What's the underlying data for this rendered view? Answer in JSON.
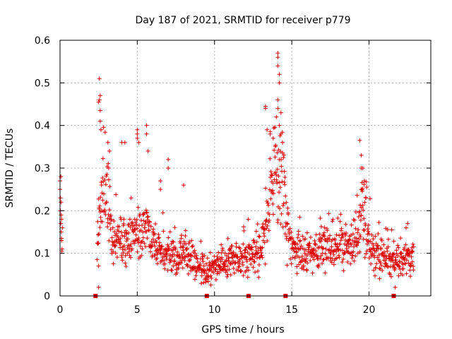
{
  "chart_data": {
    "type": "scatter",
    "title": "Day 187 of 2021, SRMTID for receiver p779",
    "xlabel": "GPS time / hours",
    "ylabel": "SRMTID / TECUs",
    "xlim": [
      0,
      24
    ],
    "ylim": [
      0,
      0.6
    ],
    "xticks": [
      0,
      5,
      10,
      15,
      20
    ],
    "xtick_labels": [
      "0",
      "5",
      "10",
      "15",
      "20"
    ],
    "yticks": [
      0,
      0.1,
      0.2,
      0.3,
      0.4,
      0.5,
      0.6
    ],
    "ytick_labels": [
      "0",
      "0.1",
      "0.2",
      "0.3",
      "0.4",
      "0.5",
      "0.6"
    ],
    "grid": true,
    "marker": "plus",
    "color": "#e00000",
    "gap_markers_x": [
      2.3,
      9.5,
      12.2,
      14.6,
      21.6
    ],
    "series": [
      {
        "name": "SRMTID",
        "generator": "envelope",
        "x_start": 2.4,
        "x_end": 22.9,
        "step": 0.0167,
        "envelope": [
          [
            2.4,
            0.12
          ],
          [
            2.7,
            0.25
          ],
          [
            2.9,
            0.32
          ],
          [
            3.1,
            0.2
          ],
          [
            3.4,
            0.15
          ],
          [
            3.9,
            0.13
          ],
          [
            4.3,
            0.12
          ],
          [
            4.8,
            0.15
          ],
          [
            5.2,
            0.14
          ],
          [
            5.6,
            0.17
          ],
          [
            6.0,
            0.12
          ],
          [
            6.5,
            0.1
          ],
          [
            7.0,
            0.1
          ],
          [
            7.5,
            0.09
          ],
          [
            8.0,
            0.1
          ],
          [
            8.5,
            0.09
          ],
          [
            9.0,
            0.07
          ],
          [
            9.5,
            0.05
          ],
          [
            10.0,
            0.07
          ],
          [
            10.5,
            0.08
          ],
          [
            11.0,
            0.09
          ],
          [
            11.5,
            0.09
          ],
          [
            12.0,
            0.09
          ],
          [
            12.5,
            0.1
          ],
          [
            13.0,
            0.11
          ],
          [
            13.4,
            0.18
          ],
          [
            13.8,
            0.25
          ],
          [
            14.2,
            0.3
          ],
          [
            14.5,
            0.24
          ],
          [
            14.8,
            0.13
          ],
          [
            15.3,
            0.1
          ],
          [
            15.8,
            0.09
          ],
          [
            16.3,
            0.1
          ],
          [
            16.8,
            0.11
          ],
          [
            17.3,
            0.12
          ],
          [
            17.8,
            0.12
          ],
          [
            18.3,
            0.12
          ],
          [
            18.8,
            0.11
          ],
          [
            19.3,
            0.14
          ],
          [
            19.6,
            0.2
          ],
          [
            19.9,
            0.13
          ],
          [
            20.4,
            0.09
          ],
          [
            20.9,
            0.09
          ],
          [
            21.4,
            0.08
          ],
          [
            21.9,
            0.08
          ],
          [
            22.4,
            0.09
          ],
          [
            22.9,
            0.09
          ]
        ],
        "extra_points": [
          [
            0.0,
            0.25
          ],
          [
            0.0,
            0.27
          ],
          [
            0.02,
            0.2
          ],
          [
            0.05,
            0.17
          ],
          [
            0.08,
            0.15
          ],
          [
            0.1,
            0.13
          ],
          [
            0.13,
            0.11
          ],
          [
            0.05,
            0.28
          ],
          [
            0.1,
            0.18
          ],
          [
            0.15,
            0.16
          ],
          [
            0.03,
            0.23
          ],
          [
            0.12,
            0.105
          ],
          [
            0.07,
            0.19
          ],
          [
            0.09,
            0.135
          ],
          [
            0.06,
            0.22
          ],
          [
            2.55,
            0.51
          ],
          [
            2.5,
            0.455
          ],
          [
            2.55,
            0.46
          ],
          [
            2.6,
            0.47
          ],
          [
            2.6,
            0.435
          ],
          [
            2.6,
            0.41
          ],
          [
            2.65,
            0.39
          ],
          [
            2.5,
            0.07
          ],
          [
            2.5,
            0.02
          ],
          [
            3.1,
            0.36
          ],
          [
            3.2,
            0.34
          ],
          [
            3.15,
            0.3
          ],
          [
            4.0,
            0.36
          ],
          [
            4.2,
            0.36
          ],
          [
            5.0,
            0.37
          ],
          [
            5.0,
            0.38
          ],
          [
            5.0,
            0.39
          ],
          [
            5.1,
            0.36
          ],
          [
            5.6,
            0.4
          ],
          [
            5.6,
            0.38
          ],
          [
            5.7,
            0.34
          ],
          [
            6.5,
            0.27
          ],
          [
            6.5,
            0.25
          ],
          [
            7.0,
            0.32
          ],
          [
            7.0,
            0.3
          ],
          [
            8.0,
            0.26
          ],
          [
            13.3,
            0.445
          ],
          [
            13.3,
            0.44
          ],
          [
            13.4,
            0.39
          ],
          [
            13.6,
            0.38
          ],
          [
            13.8,
            0.37
          ],
          [
            14.1,
            0.57
          ],
          [
            14.1,
            0.56
          ],
          [
            14.1,
            0.54
          ],
          [
            14.2,
            0.52
          ],
          [
            14.2,
            0.5
          ],
          [
            14.1,
            0.46
          ],
          [
            14.1,
            0.44
          ],
          [
            14.3,
            0.43
          ],
          [
            14.2,
            0.4
          ],
          [
            14.3,
            0.38
          ],
          [
            14.0,
            0.42
          ],
          [
            14.4,
            0.36
          ],
          [
            19.4,
            0.365
          ],
          [
            19.5,
            0.33
          ],
          [
            19.5,
            0.3
          ],
          [
            19.6,
            0.3
          ],
          [
            19.7,
            0.27
          ],
          [
            19.5,
            0.25
          ],
          [
            19.8,
            0.23
          ],
          [
            22.5,
            0.17
          ],
          [
            22.4,
            0.16
          ],
          [
            21.7,
            0.02
          ]
        ]
      }
    ]
  }
}
